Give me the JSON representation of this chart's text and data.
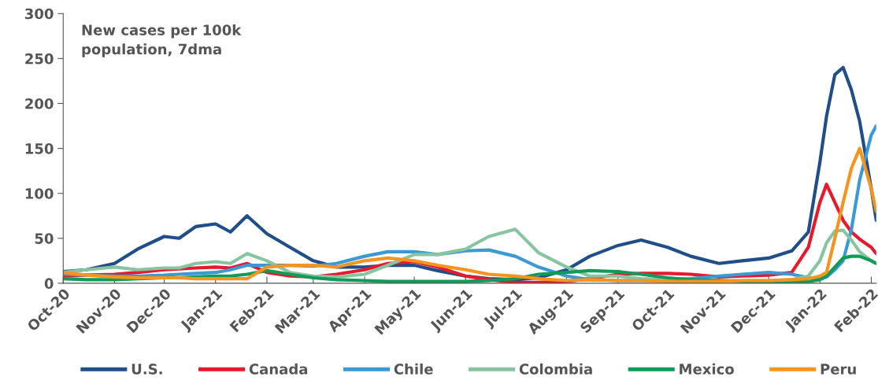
{
  "chart_data": {
    "type": "line",
    "title": "New cases per 100k\npopulation, 7dma",
    "x": [
      "2020-10-01",
      "2020-10-15",
      "2020-11-01",
      "2020-11-15",
      "2020-12-01",
      "2020-12-10",
      "2020-12-20",
      "2021-01-01",
      "2021-01-10",
      "2021-01-20",
      "2021-02-01",
      "2021-02-15",
      "2021-03-01",
      "2021-03-15",
      "2021-04-01",
      "2021-04-15",
      "2021-05-01",
      "2021-05-15",
      "2021-06-01",
      "2021-06-15",
      "2021-07-01",
      "2021-07-15",
      "2021-08-01",
      "2021-08-15",
      "2021-09-01",
      "2021-09-15",
      "2021-10-01",
      "2021-10-15",
      "2021-11-01",
      "2021-11-15",
      "2021-12-01",
      "2021-12-15",
      "2021-12-25",
      "2022-01-01",
      "2022-01-05",
      "2022-01-10",
      "2022-01-15",
      "2022-01-20",
      "2022-01-25",
      "2022-02-01",
      "2022-02-04"
    ],
    "series": [
      {
        "name": "U.S.",
        "color": "#1f4e89",
        "values": [
          13,
          15,
          22,
          38,
          52,
          50,
          63,
          66,
          57,
          75,
          55,
          40,
          25,
          18,
          18,
          20,
          20,
          14,
          8,
          5,
          4,
          6,
          15,
          30,
          42,
          48,
          40,
          30,
          22,
          25,
          28,
          36,
          57,
          135,
          186,
          232,
          240,
          215,
          180,
          105,
          70
        ]
      },
      {
        "name": "Canada",
        "color": "#e8192c",
        "values": [
          8,
          9,
          10,
          12,
          15,
          16,
          17,
          18,
          17,
          22,
          12,
          8,
          7,
          10,
          15,
          22,
          24,
          18,
          8,
          4,
          1,
          1,
          2,
          5,
          10,
          11,
          11,
          10,
          7,
          8,
          9,
          12,
          40,
          90,
          110,
          90,
          70,
          57,
          49,
          40,
          33
        ]
      },
      {
        "name": "Chile",
        "color": "#3b99d4",
        "values": [
          10,
          9,
          8,
          8,
          9,
          10,
          11,
          12,
          15,
          20,
          20,
          20,
          19,
          22,
          30,
          35,
          35,
          32,
          36,
          37,
          30,
          18,
          8,
          4,
          3,
          3,
          4,
          5,
          8,
          10,
          12,
          10,
          6,
          5,
          7,
          15,
          25,
          60,
          115,
          165,
          175
        ]
      },
      {
        "name": "Colombia",
        "color": "#88c4a0",
        "values": [
          12,
          15,
          18,
          15,
          17,
          17,
          22,
          24,
          22,
          33,
          25,
          12,
          8,
          7,
          10,
          20,
          32,
          32,
          38,
          52,
          60,
          34,
          18,
          8,
          8,
          5,
          4,
          3,
          3,
          3,
          3,
          4,
          8,
          25,
          45,
          58,
          59,
          48,
          35,
          25,
          22
        ]
      },
      {
        "name": "Mexico",
        "color": "#0f9b58",
        "values": [
          5,
          4,
          4,
          5,
          6,
          6,
          7,
          8,
          8,
          10,
          14,
          10,
          6,
          4,
          3,
          2,
          2,
          2,
          2,
          3,
          5,
          10,
          12,
          14,
          13,
          10,
          6,
          4,
          3,
          2,
          2,
          2,
          2,
          4,
          8,
          18,
          28,
          30,
          30,
          25,
          22
        ]
      },
      {
        "name": "Peru",
        "color": "#f7941d",
        "values": [
          12,
          9,
          7,
          6,
          6,
          6,
          5,
          5,
          5,
          5,
          18,
          20,
          20,
          18,
          25,
          28,
          25,
          20,
          15,
          10,
          8,
          5,
          3,
          4,
          3,
          3,
          2,
          2,
          2,
          3,
          3,
          4,
          5,
          8,
          12,
          50,
          90,
          128,
          150,
          105,
          80
        ]
      }
    ],
    "xlim": [
      "2020-10-01",
      "2022-02-04"
    ],
    "xticks": [
      {
        "value": "2020-10-01",
        "label": "Oct-20"
      },
      {
        "value": "2020-11-01",
        "label": "Nov-20"
      },
      {
        "value": "2020-12-01",
        "label": "Dec-20"
      },
      {
        "value": "2021-01-01",
        "label": "Jan-21"
      },
      {
        "value": "2021-02-01",
        "label": "Feb-21"
      },
      {
        "value": "2021-03-01",
        "label": "Mar-21"
      },
      {
        "value": "2021-04-01",
        "label": "Apr-21"
      },
      {
        "value": "2021-05-01",
        "label": "May-21"
      },
      {
        "value": "2021-06-01",
        "label": "Jun-21"
      },
      {
        "value": "2021-07-01",
        "label": "Jul-21"
      },
      {
        "value": "2021-08-01",
        "label": "Aug-21"
      },
      {
        "value": "2021-09-01",
        "label": "Sep-21"
      },
      {
        "value": "2021-10-01",
        "label": "Oct-21"
      },
      {
        "value": "2021-11-01",
        "label": "Nov-21"
      },
      {
        "value": "2021-12-01",
        "label": "Dec-21"
      },
      {
        "value": "2022-01-01",
        "label": "Jan-22"
      },
      {
        "value": "2022-02-01",
        "label": "Feb-22"
      }
    ],
    "ylim": [
      0,
      300
    ],
    "yticks": [
      0,
      50,
      100,
      150,
      200,
      250,
      300
    ],
    "grid": false,
    "legend": "bottom",
    "marker": "none",
    "line_style": "solid"
  }
}
